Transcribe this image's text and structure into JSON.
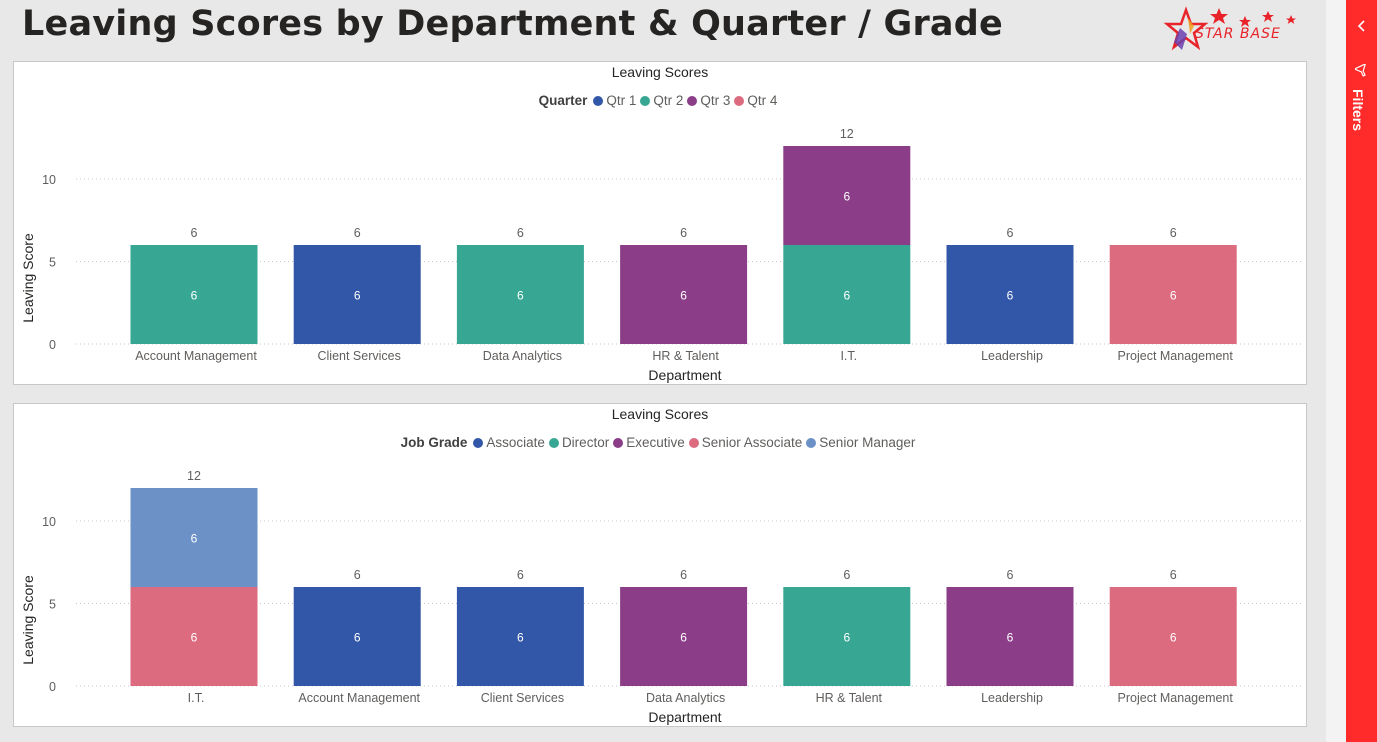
{
  "page": {
    "title": "Leaving Scores by Department & Quarter / Grade"
  },
  "logo": {
    "text": "STAR BASE",
    "color": "#e8242a"
  },
  "filters_pane": {
    "label": "Filters",
    "color": "#ff2a2a",
    "collapse_icon": "chevron-left-icon",
    "filter_icon": "filter-icon"
  },
  "chart_data": [
    {
      "type": "bar",
      "stacked": true,
      "title": "Leaving Scores",
      "xlabel": "Department",
      "ylabel": "Leaving Score",
      "ylim": [
        0,
        13
      ],
      "yticks": [
        0,
        5,
        10
      ],
      "grid": true,
      "legend_title": "Quarter",
      "legend_position": "top-center",
      "categories": [
        "Account Management",
        "Client Services",
        "Data Analytics",
        "HR & Talent",
        "I.T.",
        "Leadership",
        "Project Management"
      ],
      "series": [
        {
          "name": "Qtr 1",
          "color": "#3257a8",
          "values": [
            null,
            6,
            null,
            null,
            null,
            6,
            null
          ]
        },
        {
          "name": "Qtr 2",
          "color": "#37a794",
          "values": [
            6,
            null,
            6,
            null,
            6,
            null,
            null
          ]
        },
        {
          "name": "Qtr 3",
          "color": "#8b3d88",
          "values": [
            null,
            null,
            null,
            6,
            6,
            null,
            null
          ]
        },
        {
          "name": "Qtr 4",
          "color": "#dd6b7f",
          "values": [
            null,
            null,
            null,
            null,
            null,
            null,
            6
          ]
        }
      ],
      "totals": [
        6,
        6,
        6,
        6,
        12,
        6,
        6
      ]
    },
    {
      "type": "bar",
      "stacked": true,
      "title": "Leaving Scores",
      "xlabel": "Department",
      "ylabel": "Leaving Score",
      "ylim": [
        0,
        13
      ],
      "yticks": [
        0,
        5,
        10
      ],
      "grid": true,
      "legend_title": "Job Grade",
      "legend_position": "top-center",
      "categories": [
        "I.T.",
        "Account Management",
        "Client Services",
        "Data Analytics",
        "HR & Talent",
        "Leadership",
        "Project Management"
      ],
      "series": [
        {
          "name": "Associate",
          "color": "#3257a8",
          "values": [
            null,
            6,
            6,
            null,
            null,
            null,
            null
          ]
        },
        {
          "name": "Director",
          "color": "#37a794",
          "values": [
            null,
            null,
            null,
            null,
            6,
            null,
            null
          ]
        },
        {
          "name": "Executive",
          "color": "#8b3d88",
          "values": [
            null,
            null,
            null,
            6,
            null,
            6,
            null
          ]
        },
        {
          "name": "Senior Associate",
          "color": "#dd6b7f",
          "values": [
            6,
            null,
            null,
            null,
            null,
            null,
            6
          ]
        },
        {
          "name": "Senior Manager",
          "color": "#6b91c7",
          "values": [
            6,
            null,
            null,
            null,
            null,
            null,
            null
          ]
        }
      ],
      "totals": [
        12,
        6,
        6,
        6,
        6,
        6,
        6
      ]
    }
  ]
}
